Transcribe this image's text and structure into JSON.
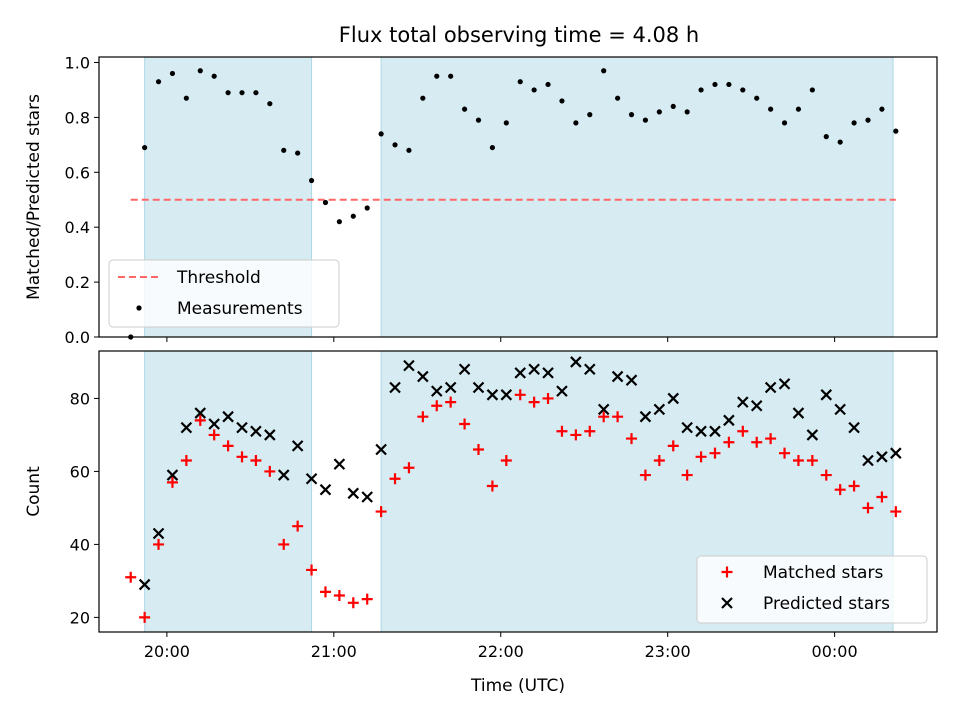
{
  "colors": {
    "threshold": "#ff6666",
    "shade": "#add8e6",
    "matched": "#ff0000",
    "predicted": "#000000",
    "measurement": "#000000"
  },
  "figure_title": "Flux total observing time = 4.08 h",
  "chart_data": [
    {
      "type": "scatter",
      "title": "Flux total observing time = 4.08 h",
      "xlabel": "",
      "ylabel": "Matched/Predicted stars",
      "ylim": [
        0,
        1.02
      ],
      "y_ticks": [
        "0.0",
        "0.2",
        "0.4",
        "0.6",
        "0.8",
        "1.0"
      ],
      "x_tick_labels": [],
      "grid": false,
      "legend_position": "lower-left",
      "shaded_intervals": [
        [
          "19:52",
          "20:52"
        ],
        [
          "21:17",
          "00:21"
        ]
      ],
      "threshold": {
        "name": "Threshold",
        "value": 0.5,
        "style": "dashed"
      },
      "series": [
        {
          "name": "Measurements",
          "marker": "dot",
          "points": [
            [
              "19:47",
              0.0
            ],
            [
              "19:52",
              0.69
            ],
            [
              "19:57",
              0.93
            ],
            [
              "20:02",
              0.96
            ],
            [
              "20:07",
              0.87
            ],
            [
              "20:12",
              0.97
            ],
            [
              "20:17",
              0.95
            ],
            [
              "20:22",
              0.89
            ],
            [
              "20:27",
              0.89
            ],
            [
              "20:32",
              0.89
            ],
            [
              "20:37",
              0.85
            ],
            [
              "20:42",
              0.68
            ],
            [
              "20:47",
              0.67
            ],
            [
              "20:52",
              0.57
            ],
            [
              "20:57",
              0.49
            ],
            [
              "21:02",
              0.42
            ],
            [
              "21:07",
              0.44
            ],
            [
              "21:12",
              0.47
            ],
            [
              "21:17",
              0.74
            ],
            [
              "21:22",
              0.7
            ],
            [
              "21:27",
              0.68
            ],
            [
              "21:32",
              0.87
            ],
            [
              "21:37",
              0.95
            ],
            [
              "21:42",
              0.95
            ],
            [
              "21:47",
              0.83
            ],
            [
              "21:52",
              0.79
            ],
            [
              "21:57",
              0.69
            ],
            [
              "22:02",
              0.78
            ],
            [
              "22:07",
              0.93
            ],
            [
              "22:12",
              0.9
            ],
            [
              "22:17",
              0.92
            ],
            [
              "22:22",
              0.86
            ],
            [
              "22:27",
              0.78
            ],
            [
              "22:32",
              0.81
            ],
            [
              "22:37",
              0.97
            ],
            [
              "22:42",
              0.87
            ],
            [
              "22:47",
              0.81
            ],
            [
              "22:52",
              0.79
            ],
            [
              "22:57",
              0.82
            ],
            [
              "23:02",
              0.84
            ],
            [
              "23:07",
              0.82
            ],
            [
              "23:12",
              0.9
            ],
            [
              "23:17",
              0.92
            ],
            [
              "23:22",
              0.92
            ],
            [
              "23:27",
              0.9
            ],
            [
              "23:32",
              0.87
            ],
            [
              "23:37",
              0.83
            ],
            [
              "23:42",
              0.78
            ],
            [
              "23:47",
              0.83
            ],
            [
              "23:52",
              0.9
            ],
            [
              "23:57",
              0.73
            ],
            [
              "00:02",
              0.71
            ],
            [
              "00:07",
              0.78
            ],
            [
              "00:12",
              0.79
            ],
            [
              "00:17",
              0.83
            ],
            [
              "00:22",
              0.75
            ]
          ]
        }
      ]
    },
    {
      "type": "scatter",
      "title": "",
      "xlabel": "Time (UTC)",
      "ylabel": "Count",
      "ylim": [
        16,
        93
      ],
      "y_ticks": [
        "20",
        "40",
        "60",
        "80"
      ],
      "x_tick_labels": [
        "20:00",
        "21:00",
        "22:00",
        "23:00",
        "00:00"
      ],
      "grid": false,
      "legend_position": "lower-right",
      "shaded_intervals": [
        [
          "19:52",
          "20:52"
        ],
        [
          "21:17",
          "00:21"
        ]
      ],
      "series": [
        {
          "name": "Matched stars",
          "marker": "plus",
          "points": [
            [
              "19:47",
              31
            ],
            [
              "19:52",
              20
            ],
            [
              "19:57",
              40
            ],
            [
              "20:02",
              57
            ],
            [
              "20:07",
              63
            ],
            [
              "20:12",
              74
            ],
            [
              "20:17",
              70
            ],
            [
              "20:22",
              67
            ],
            [
              "20:27",
              64
            ],
            [
              "20:32",
              63
            ],
            [
              "20:37",
              60
            ],
            [
              "20:42",
              40
            ],
            [
              "20:47",
              45
            ],
            [
              "20:52",
              33
            ],
            [
              "20:57",
              27
            ],
            [
              "21:02",
              26
            ],
            [
              "21:07",
              24
            ],
            [
              "21:12",
              25
            ],
            [
              "21:17",
              49
            ],
            [
              "21:22",
              58
            ],
            [
              "21:27",
              61
            ],
            [
              "21:32",
              75
            ],
            [
              "21:37",
              78
            ],
            [
              "21:42",
              79
            ],
            [
              "21:47",
              73
            ],
            [
              "21:52",
              66
            ],
            [
              "21:57",
              56
            ],
            [
              "22:02",
              63
            ],
            [
              "22:07",
              81
            ],
            [
              "22:12",
              79
            ],
            [
              "22:17",
              80
            ],
            [
              "22:22",
              71
            ],
            [
              "22:27",
              70
            ],
            [
              "22:32",
              71
            ],
            [
              "22:37",
              75
            ],
            [
              "22:42",
              75
            ],
            [
              "22:47",
              69
            ],
            [
              "22:52",
              59
            ],
            [
              "22:57",
              63
            ],
            [
              "23:02",
              67
            ],
            [
              "23:07",
              59
            ],
            [
              "23:12",
              64
            ],
            [
              "23:17",
              65
            ],
            [
              "23:22",
              68
            ],
            [
              "23:27",
              71
            ],
            [
              "23:32",
              68
            ],
            [
              "23:37",
              69
            ],
            [
              "23:42",
              65
            ],
            [
              "23:47",
              63
            ],
            [
              "23:52",
              63
            ],
            [
              "23:57",
              59
            ],
            [
              "00:02",
              55
            ],
            [
              "00:07",
              56
            ],
            [
              "00:12",
              50
            ],
            [
              "00:17",
              53
            ],
            [
              "00:22",
              49
            ]
          ]
        },
        {
          "name": "Predicted stars",
          "marker": "x",
          "points": [
            [
              "19:52",
              29
            ],
            [
              "19:57",
              43
            ],
            [
              "20:02",
              59
            ],
            [
              "20:07",
              72
            ],
            [
              "20:12",
              76
            ],
            [
              "20:17",
              73
            ],
            [
              "20:22",
              75
            ],
            [
              "20:27",
              72
            ],
            [
              "20:32",
              71
            ],
            [
              "20:37",
              70
            ],
            [
              "20:42",
              59
            ],
            [
              "20:47",
              67
            ],
            [
              "20:52",
              58
            ],
            [
              "20:57",
              55
            ],
            [
              "21:02",
              62
            ],
            [
              "21:07",
              54
            ],
            [
              "21:12",
              53
            ],
            [
              "21:17",
              66
            ],
            [
              "21:22",
              83
            ],
            [
              "21:27",
              89
            ],
            [
              "21:32",
              86
            ],
            [
              "21:37",
              82
            ],
            [
              "21:42",
              83
            ],
            [
              "21:47",
              88
            ],
            [
              "21:52",
              83
            ],
            [
              "21:57",
              81
            ],
            [
              "22:02",
              81
            ],
            [
              "22:07",
              87
            ],
            [
              "22:12",
              88
            ],
            [
              "22:17",
              87
            ],
            [
              "22:22",
              82
            ],
            [
              "22:27",
              90
            ],
            [
              "22:32",
              88
            ],
            [
              "22:37",
              77
            ],
            [
              "22:42",
              86
            ],
            [
              "22:47",
              85
            ],
            [
              "22:52",
              75
            ],
            [
              "22:57",
              77
            ],
            [
              "23:02",
              80
            ],
            [
              "23:07",
              72
            ],
            [
              "23:12",
              71
            ],
            [
              "23:17",
              71
            ],
            [
              "23:22",
              74
            ],
            [
              "23:27",
              79
            ],
            [
              "23:32",
              78
            ],
            [
              "23:37",
              83
            ],
            [
              "23:42",
              84
            ],
            [
              "23:47",
              76
            ],
            [
              "23:52",
              70
            ],
            [
              "23:57",
              81
            ],
            [
              "00:02",
              77
            ],
            [
              "00:07",
              72
            ],
            [
              "00:12",
              63
            ],
            [
              "00:17",
              64
            ],
            [
              "00:22",
              65
            ]
          ]
        }
      ]
    }
  ]
}
